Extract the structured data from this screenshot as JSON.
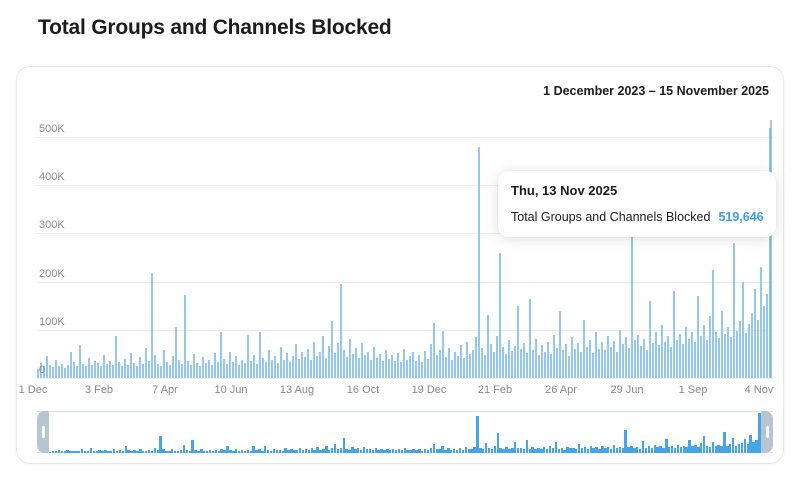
{
  "page": {
    "title": "Total Groups and Channels Blocked"
  },
  "card": {
    "date_range": "1 December 2023 – 15 November 2025"
  },
  "tooltip": {
    "date": "Thu, 13 Nov 2025",
    "label": "Total Groups and Channels Blocked",
    "value": "519,646"
  },
  "colors": {
    "bar_main": "#95c8f1",
    "bar_mini": "#44a5e8",
    "accent_value": "#3ba0e6",
    "brush_handle": "#b7c5d3"
  },
  "chart_data": {
    "type": "bar",
    "title": "Total Groups and Channels Blocked",
    "subtitle": "1 December 2023 – 15 November 2025",
    "xlabel": "",
    "ylabel": "",
    "x_range": [
      "1 Dec 2023",
      "15 Nov 2025"
    ],
    "ylim": [
      0,
      541000
    ],
    "grid": true,
    "legend": "none",
    "yticks": [
      "500K",
      "400K",
      "300K",
      "200K",
      "100K",
      "0"
    ],
    "xticks": [
      "1 Dec",
      "3 Feb",
      "7 Apr",
      "10 Jun",
      "13 Aug",
      "16 Oct",
      "19 Dec",
      "21 Feb",
      "26 Apr",
      "29 Jun",
      "1 Sep",
      "4 Nov"
    ],
    "bin_days": 3,
    "values": [
      18000,
      32000,
      24000,
      45000,
      28000,
      22000,
      38000,
      26000,
      30000,
      21000,
      27000,
      55000,
      33000,
      24000,
      68000,
      30000,
      25000,
      42000,
      28000,
      35000,
      31000,
      26000,
      48000,
      29000,
      36000,
      27000,
      88000,
      34000,
      26000,
      40000,
      28000,
      52000,
      31000,
      25000,
      44000,
      30000,
      62000,
      35000,
      218000,
      47000,
      30000,
      26000,
      58000,
      33000,
      27000,
      46000,
      105000,
      38000,
      29000,
      172000,
      36000,
      28000,
      50000,
      32000,
      26000,
      44000,
      31000,
      38000,
      27000,
      52000,
      34000,
      95000,
      40000,
      29000,
      55000,
      33000,
      45000,
      28000,
      38000,
      31000,
      90000,
      36000,
      48000,
      30000,
      95000,
      42000,
      33000,
      58000,
      37000,
      46000,
      31000,
      64000,
      38000,
      52000,
      34000,
      45000,
      70000,
      39000,
      55000,
      43000,
      60000,
      38000,
      75000,
      46000,
      55000,
      88000,
      42000,
      66000,
      118000,
      52000,
      72000,
      195000,
      58000,
      44000,
      80000,
      50000,
      62000,
      41000,
      73000,
      47000,
      55000,
      38000,
      64000,
      42000,
      50000,
      35000,
      58000,
      40000,
      47000,
      36000,
      52000,
      34000,
      60000,
      38000,
      45000,
      55000,
      36000,
      48000,
      33000,
      56000,
      40000,
      70000,
      115000,
      48000,
      58000,
      98000,
      44000,
      62000,
      38000,
      54000,
      46000,
      68000,
      42000,
      75000,
      50000,
      58000,
      85000,
      480000,
      62000,
      48000,
      130000,
      70000,
      55000,
      88000,
      260000,
      64000,
      50000,
      78000,
      56000,
      66000,
      150000,
      60000,
      72000,
      52000,
      165000,
      58000,
      80000,
      48000,
      68000,
      55000,
      75000,
      50000,
      90000,
      62000,
      140000,
      58000,
      70000,
      46000,
      85000,
      60000,
      72000,
      55000,
      120000,
      65000,
      78000,
      52000,
      95000,
      60000,
      74000,
      58000,
      88000,
      64000,
      76000,
      55000,
      100000,
      70000,
      85000,
      62000,
      295000,
      78000,
      90000,
      66000,
      82000,
      58000,
      160000,
      72000,
      95000,
      68000,
      110000,
      75000,
      88000,
      64000,
      180000,
      78000,
      92000,
      70000,
      105000,
      82000,
      96000,
      74000,
      170000,
      88000,
      110000,
      78000,
      128000,
      225000,
      96000,
      84000,
      140000,
      92000,
      105000,
      86000,
      280000,
      98000,
      118000,
      200000,
      94000,
      112000,
      135000,
      185000,
      120000,
      230000,
      150000,
      175000,
      519646
    ],
    "highlight": {
      "index": 244,
      "date": "Thu, 13 Nov 2025",
      "value": 519646
    }
  }
}
